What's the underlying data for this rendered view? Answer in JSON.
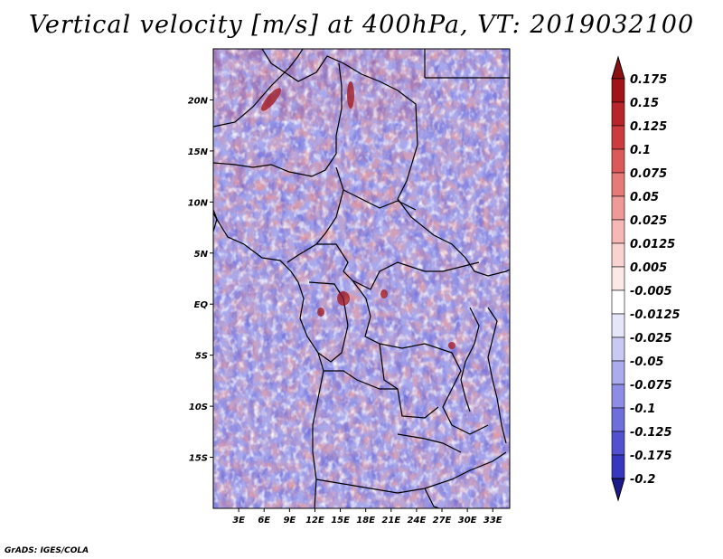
{
  "title": "Vertical velocity [m/s] at 400hPa, VT: 2019032100",
  "footer": "GrADS: IGES/COLA",
  "map": {
    "lon_range": [
      0,
      35
    ],
    "lat_range": [
      -20,
      25
    ],
    "lat_ticks": [
      {
        "value": 20,
        "label": "20N"
      },
      {
        "value": 15,
        "label": "15N"
      },
      {
        "value": 10,
        "label": "10N"
      },
      {
        "value": 5,
        "label": "5N"
      },
      {
        "value": 0,
        "label": "EQ"
      },
      {
        "value": -5,
        "label": "5S"
      },
      {
        "value": -10,
        "label": "10S"
      },
      {
        "value": -15,
        "label": "15S"
      }
    ],
    "lon_ticks": [
      {
        "value": 3,
        "label": "3E"
      },
      {
        "value": 6,
        "label": "6E"
      },
      {
        "value": 9,
        "label": "9E"
      },
      {
        "value": 12,
        "label": "12E"
      },
      {
        "value": 15,
        "label": "15E"
      },
      {
        "value": 18,
        "label": "18E"
      },
      {
        "value": 21,
        "label": "21E"
      },
      {
        "value": 24,
        "label": "24E"
      },
      {
        "value": 27,
        "label": "27E"
      },
      {
        "value": 30,
        "label": "30E"
      },
      {
        "value": 33,
        "label": "33E"
      }
    ]
  },
  "colorbar": {
    "levels": [
      {
        "label": "0.175",
        "color": "#a01418"
      },
      {
        "label": "0.15",
        "color": "#b8252a"
      },
      {
        "label": "0.125",
        "color": "#cc3c3e"
      },
      {
        "label": "0.1",
        "color": "#db5a59"
      },
      {
        "label": "0.075",
        "color": "#e57a78"
      },
      {
        "label": "0.05",
        "color": "#ee9a97"
      },
      {
        "label": "0.025",
        "color": "#f5b8b5"
      },
      {
        "label": "0.0125",
        "color": "#f9d3d0"
      },
      {
        "label": "0.005",
        "color": "#fce9e7"
      },
      {
        "label": "-0.005",
        "color": "#ffffff"
      },
      {
        "label": "-0.0125",
        "color": "#e6e6fa"
      },
      {
        "label": "-0.025",
        "color": "#c9c9f3"
      },
      {
        "label": "-0.05",
        "color": "#ababed"
      },
      {
        "label": "-0.075",
        "color": "#8d8de5"
      },
      {
        "label": "-0.1",
        "color": "#6f6fdc"
      },
      {
        "label": "-0.125",
        "color": "#5252cf"
      },
      {
        "label": "-0.175",
        "color": "#3737bf"
      },
      {
        "label": "-0.2",
        "color": "#2121a8"
      }
    ],
    "top_color": "#8b1010",
    "bottom_color": "#1a1a8a"
  }
}
